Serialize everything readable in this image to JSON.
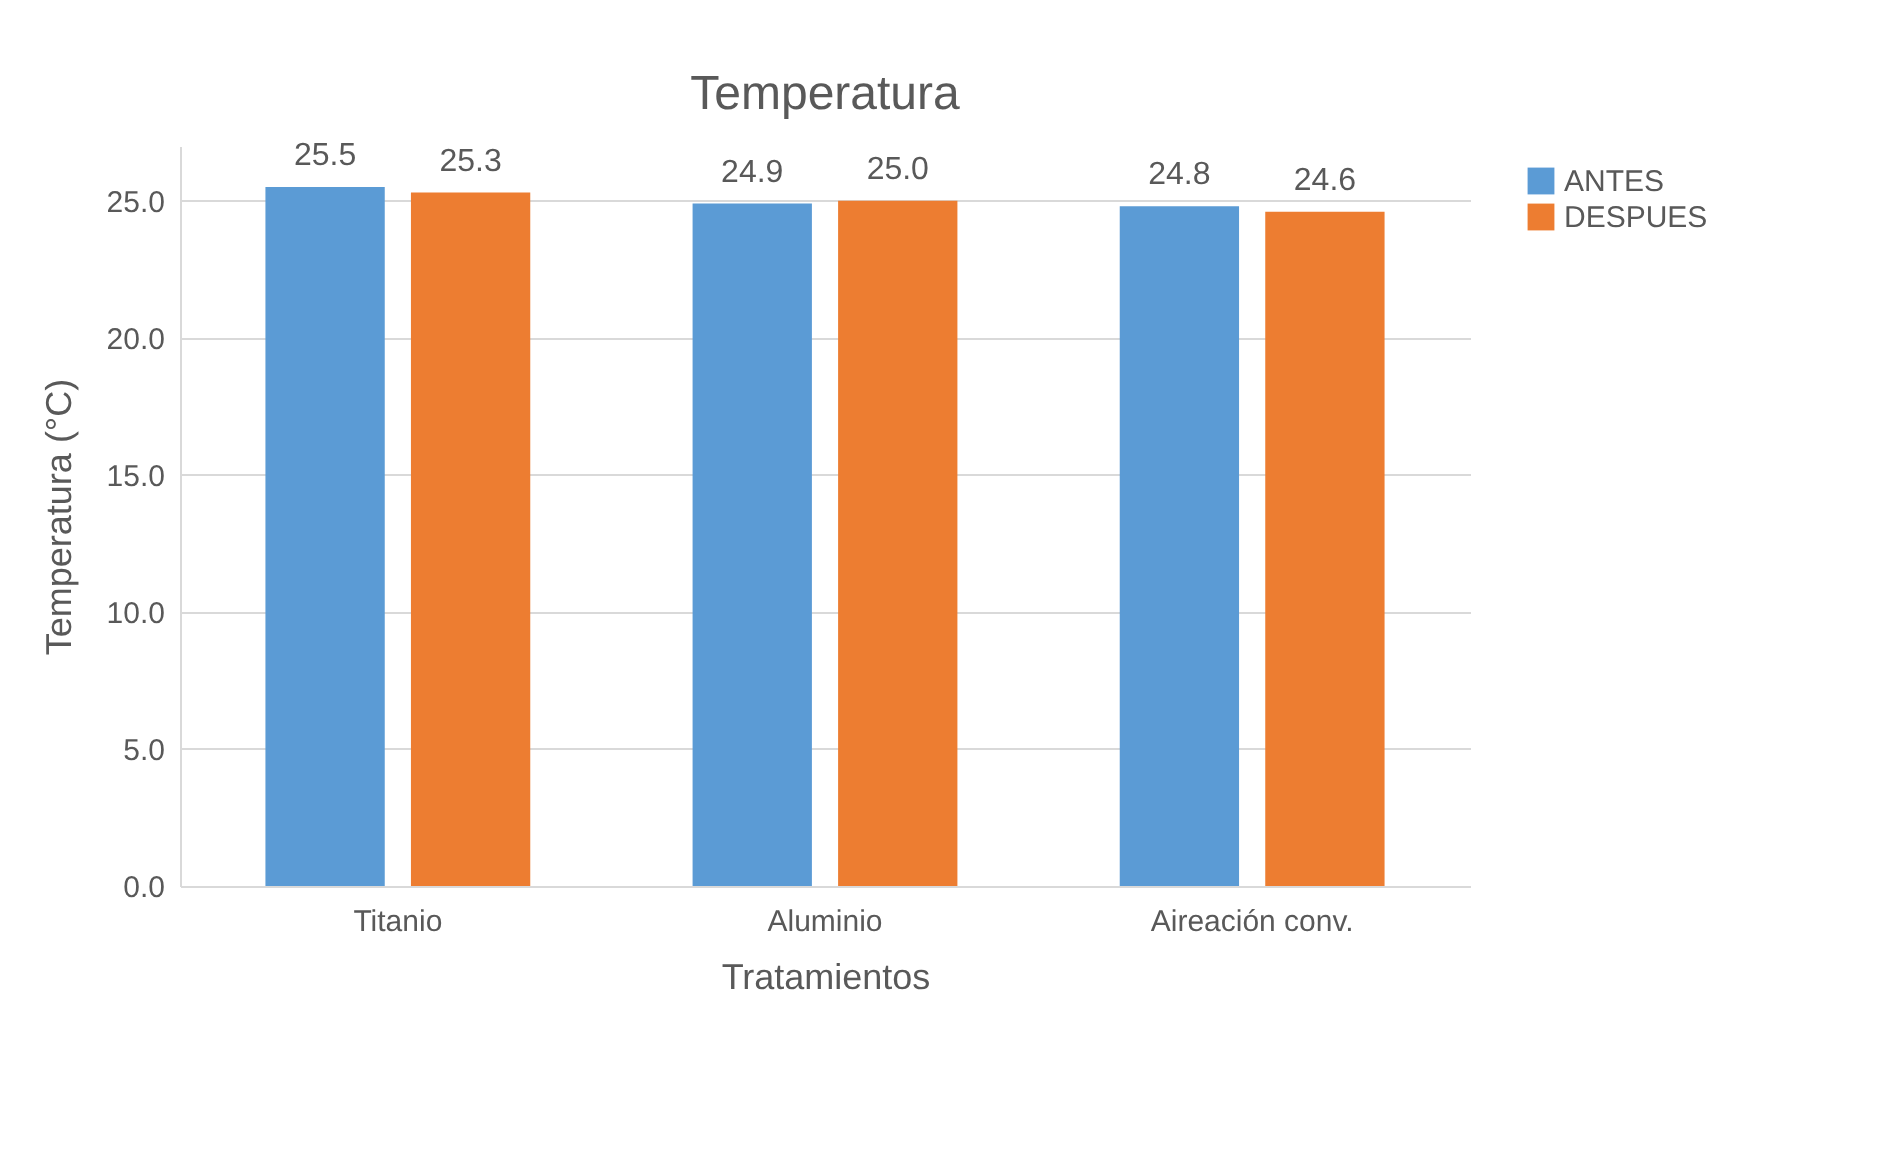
{
  "chart_data": {
    "type": "bar",
    "title": "Temperatura",
    "xlabel": "Tratamientos",
    "ylabel": "Temperatura (°C)",
    "categories": [
      "Titanio",
      "Aluminio",
      "Aireación conv."
    ],
    "series": [
      {
        "name": "ANTES",
        "color": "#5b9bd5",
        "values": [
          25.5,
          24.9,
          24.8
        ],
        "value_labels": [
          "25.5",
          "24.9",
          "24.8"
        ]
      },
      {
        "name": "DESPUES",
        "color": "#ed7d31",
        "values": [
          25.3,
          25.0,
          24.6
        ],
        "value_labels": [
          "25.3",
          "25.0",
          "24.6"
        ]
      }
    ],
    "ylim": [
      0,
      27
    ],
    "yticks": [
      {
        "value": 0,
        "label": "0.0"
      },
      {
        "value": 5,
        "label": "5.0"
      },
      {
        "value": 10,
        "label": "10.0"
      },
      {
        "value": 15,
        "label": "15.0"
      },
      {
        "value": 20,
        "label": "20.0"
      },
      {
        "value": 25,
        "label": "25.0"
      }
    ],
    "grid": "y",
    "legend": "right"
  }
}
